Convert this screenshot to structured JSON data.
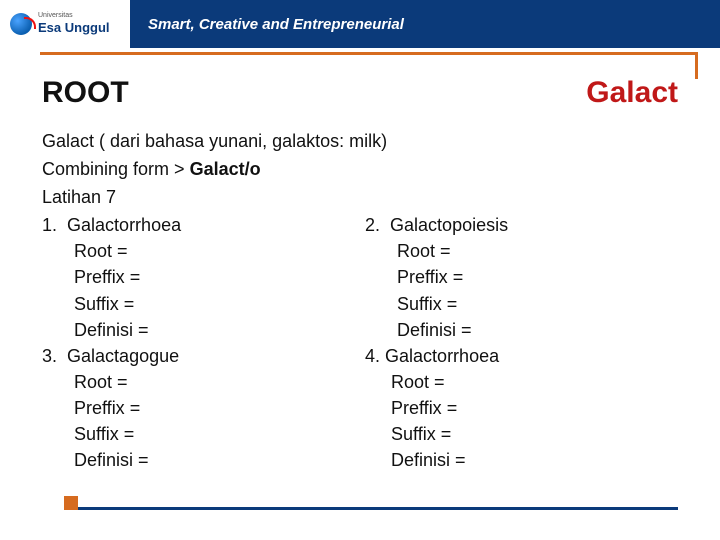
{
  "header": {
    "logo_top": "Universitas",
    "logo_name": "Esa Unggul",
    "tagline": "Smart, Creative and Entrepreneurial"
  },
  "title": {
    "left": "ROOT",
    "right": "Galact"
  },
  "intro": {
    "line1": "Galact ( dari bahasa yunani, galaktos: milk)",
    "line2a": "Combining form   > ",
    "line2b": "Galact/o",
    "latihan": "Latihan 7"
  },
  "labels": {
    "root": "Root     =",
    "preffix": "Preffix  =",
    "suffix": "Suffix   =",
    "definisi": "Definisi ="
  },
  "items": [
    {
      "num": "1.",
      "term": "Galactorrhoea"
    },
    {
      "num": "2.",
      "term": "Galactopoiesis"
    },
    {
      "num": "3.",
      "term": "Galactagogue"
    },
    {
      "num": "4.",
      "term": "Galactorrhoea",
      "tight": true
    }
  ],
  "colors": {
    "brand_blue": "#0b3a7a",
    "accent_orange": "#d66b1f",
    "title_red": "#c01818",
    "text": "#111111",
    "bg": "#ffffff"
  },
  "typography": {
    "title_fontsize_pt": 22,
    "body_fontsize_pt": 13,
    "tagline_fontsize_pt": 11
  }
}
